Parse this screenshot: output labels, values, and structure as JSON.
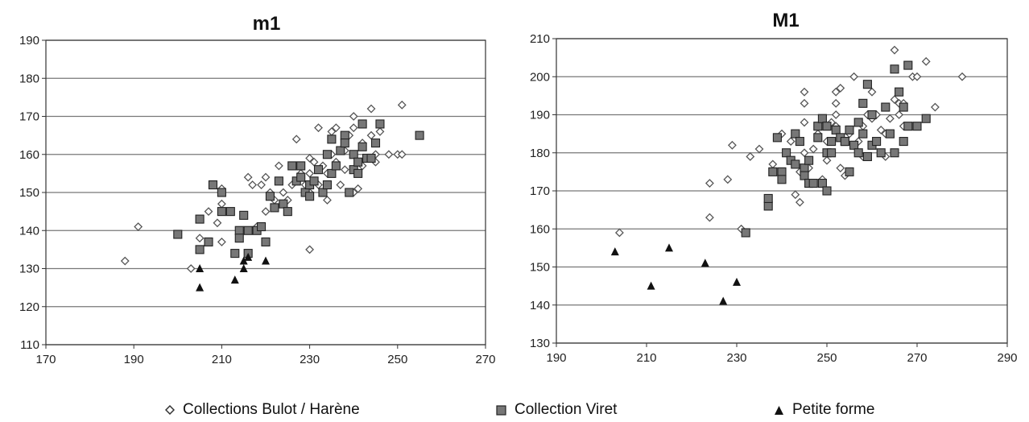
{
  "colors": {
    "grid": "#777777",
    "axis": "#333333",
    "diamond_stroke": "#555555",
    "square_fill": "#777777",
    "triangle_fill": "#111111"
  },
  "legend": {
    "bulot": "Collections Bulot / Harène",
    "viret": "Collection Viret",
    "petite": "Petite forme"
  },
  "chart_data": [
    {
      "type": "scatter",
      "title": "m1",
      "xlabel": "",
      "ylabel": "",
      "xlim": [
        170,
        270
      ],
      "ylim": [
        110,
        190
      ],
      "xticks": [
        170,
        190,
        210,
        230,
        250,
        270
      ],
      "yticks": [
        110,
        120,
        130,
        140,
        150,
        160,
        170,
        180,
        190
      ],
      "grid": true,
      "series": [
        {
          "name": "Collections Bulot / Harène",
          "marker": "diamond",
          "points": [
            [
              188,
              132
            ],
            [
              191,
              141
            ],
            [
              203,
              130
            ],
            [
              205,
              138
            ],
            [
              207,
              145
            ],
            [
              209,
              142
            ],
            [
              210,
              137
            ],
            [
              210,
              147
            ],
            [
              210,
              151
            ],
            [
              212,
              145
            ],
            [
              214,
              138
            ],
            [
              216,
              154
            ],
            [
              217,
              152
            ],
            [
              218,
              141
            ],
            [
              219,
              152
            ],
            [
              220,
              154
            ],
            [
              220,
              145
            ],
            [
              221,
              150
            ],
            [
              222,
              148
            ],
            [
              223,
              157
            ],
            [
              224,
              150
            ],
            [
              225,
              148
            ],
            [
              226,
              152
            ],
            [
              226,
              157
            ],
            [
              227,
              164
            ],
            [
              228,
              155
            ],
            [
              229,
              152
            ],
            [
              230,
              150
            ],
            [
              230,
              155
            ],
            [
              230,
              159
            ],
            [
              230,
              135
            ],
            [
              231,
              158
            ],
            [
              232,
              167
            ],
            [
              232,
              152
            ],
            [
              233,
              157
            ],
            [
              234,
              148
            ],
            [
              234,
              155
            ],
            [
              235,
              160
            ],
            [
              235,
              166
            ],
            [
              236,
              167
            ],
            [
              236,
              158
            ],
            [
              237,
              152
            ],
            [
              238,
              156
            ],
            [
              238,
              161
            ],
            [
              239,
              165
            ],
            [
              240,
              170
            ],
            [
              240,
              150
            ],
            [
              240,
              167
            ],
            [
              241,
              151
            ],
            [
              242,
              157
            ],
            [
              242,
              163
            ],
            [
              244,
              172
            ],
            [
              244,
              165
            ],
            [
              245,
              160
            ],
            [
              245,
              158
            ],
            [
              246,
              166
            ],
            [
              248,
              160
            ],
            [
              250,
              160
            ],
            [
              251,
              173
            ],
            [
              251,
              160
            ]
          ]
        },
        {
          "name": "Collection Viret",
          "marker": "square",
          "points": [
            [
              200,
              139
            ],
            [
              205,
              143
            ],
            [
              205,
              135
            ],
            [
              207,
              137
            ],
            [
              208,
              152
            ],
            [
              210,
              150
            ],
            [
              210,
              145
            ],
            [
              212,
              145
            ],
            [
              213,
              134
            ],
            [
              214,
              140
            ],
            [
              214,
              138
            ],
            [
              215,
              144
            ],
            [
              216,
              134
            ],
            [
              216,
              140
            ],
            [
              218,
              140
            ],
            [
              219,
              141
            ],
            [
              220,
              137
            ],
            [
              221,
              149
            ],
            [
              222,
              146
            ],
            [
              223,
              153
            ],
            [
              224,
              147
            ],
            [
              225,
              145
            ],
            [
              226,
              157
            ],
            [
              227,
              153
            ],
            [
              228,
              154
            ],
            [
              228,
              157
            ],
            [
              229,
              150
            ],
            [
              230,
              149
            ],
            [
              230,
              152
            ],
            [
              231,
              153
            ],
            [
              232,
              156
            ],
            [
              233,
              150
            ],
            [
              234,
              152
            ],
            [
              234,
              160
            ],
            [
              235,
              155
            ],
            [
              235,
              164
            ],
            [
              236,
              157
            ],
            [
              237,
              161
            ],
            [
              238,
              165
            ],
            [
              238,
              163
            ],
            [
              239,
              150
            ],
            [
              240,
              160
            ],
            [
              240,
              156
            ],
            [
              241,
              155
            ],
            [
              241,
              158
            ],
            [
              242,
              168
            ],
            [
              242,
              162
            ],
            [
              243,
              159
            ],
            [
              244,
              159
            ],
            [
              245,
              163
            ],
            [
              246,
              168
            ],
            [
              255,
              165
            ]
          ]
        },
        {
          "name": "Petite forme",
          "marker": "triangle",
          "points": [
            [
              205,
              130
            ],
            [
              205,
              125
            ],
            [
              213,
              127
            ],
            [
              215,
              130
            ],
            [
              216,
              133
            ],
            [
              220,
              132
            ],
            [
              215,
              132
            ]
          ]
        }
      ]
    },
    {
      "type": "scatter",
      "title": "M1",
      "xlabel": "",
      "ylabel": "",
      "xlim": [
        190,
        290
      ],
      "ylim": [
        130,
        210
      ],
      "xticks": [
        190,
        210,
        230,
        250,
        270,
        290
      ],
      "yticks": [
        130,
        140,
        150,
        160,
        170,
        180,
        190,
        200,
        210
      ],
      "grid": true,
      "series": [
        {
          "name": "Collections Bulot / Harène",
          "marker": "diamond",
          "points": [
            [
              204,
              159
            ],
            [
              224,
              172
            ],
            [
              224,
              163
            ],
            [
              228,
              173
            ],
            [
              229,
              182
            ],
            [
              231,
              160
            ],
            [
              233,
              179
            ],
            [
              235,
              181
            ],
            [
              238,
              177
            ],
            [
              240,
              185
            ],
            [
              242,
              183
            ],
            [
              243,
              169
            ],
            [
              244,
              167
            ],
            [
              244,
              175
            ],
            [
              245,
              180
            ],
            [
              245,
              188
            ],
            [
              245,
              193
            ],
            [
              245,
              196
            ],
            [
              246,
              176
            ],
            [
              247,
              172
            ],
            [
              248,
              185
            ],
            [
              249,
              173
            ],
            [
              250,
              183
            ],
            [
              250,
              178
            ],
            [
              251,
              188
            ],
            [
              252,
              187
            ],
            [
              252,
              190
            ],
            [
              252,
              193
            ],
            [
              252,
              196
            ],
            [
              253,
              197
            ],
            [
              253,
              176
            ],
            [
              254,
              174
            ],
            [
              255,
              185
            ],
            [
              256,
              182
            ],
            [
              256,
              200
            ],
            [
              257,
              183
            ],
            [
              258,
              179
            ],
            [
              258,
              187
            ],
            [
              258,
              193
            ],
            [
              259,
              190
            ],
            [
              260,
              189
            ],
            [
              260,
              196
            ],
            [
              261,
              190
            ],
            [
              261,
              183
            ],
            [
              262,
              186
            ],
            [
              263,
              179
            ],
            [
              264,
              189
            ],
            [
              265,
              194
            ],
            [
              265,
              207
            ],
            [
              266,
              193
            ],
            [
              266,
              190
            ],
            [
              267,
              193
            ],
            [
              267,
              187
            ],
            [
              269,
              200
            ],
            [
              270,
              200
            ],
            [
              272,
              204
            ],
            [
              274,
              192
            ],
            [
              280,
              200
            ],
            [
              263,
              185
            ],
            [
              247,
              181
            ]
          ]
        },
        {
          "name": "Collection Viret",
          "marker": "square",
          "points": [
            [
              232,
              159
            ],
            [
              237,
              166
            ],
            [
              237,
              168
            ],
            [
              238,
              175
            ],
            [
              239,
              184
            ],
            [
              240,
              175
            ],
            [
              240,
              173
            ],
            [
              241,
              180
            ],
            [
              242,
              178
            ],
            [
              243,
              177
            ],
            [
              243,
              185
            ],
            [
              244,
              183
            ],
            [
              245,
              176
            ],
            [
              245,
              174
            ],
            [
              246,
              178
            ],
            [
              246,
              172
            ],
            [
              247,
              172
            ],
            [
              248,
              187
            ],
            [
              248,
              184
            ],
            [
              249,
              189
            ],
            [
              249,
              172
            ],
            [
              250,
              180
            ],
            [
              250,
              170
            ],
            [
              250,
              187
            ],
            [
              251,
              183
            ],
            [
              251,
              180
            ],
            [
              252,
              186
            ],
            [
              253,
              184
            ],
            [
              254,
              183
            ],
            [
              254,
              183
            ],
            [
              255,
              175
            ],
            [
              255,
              186
            ],
            [
              256,
              182
            ],
            [
              257,
              180
            ],
            [
              257,
              188
            ],
            [
              258,
              193
            ],
            [
              258,
              185
            ],
            [
              259,
              198
            ],
            [
              259,
              179
            ],
            [
              260,
              182
            ],
            [
              260,
              190
            ],
            [
              261,
              183
            ],
            [
              262,
              180
            ],
            [
              263,
              192
            ],
            [
              264,
              185
            ],
            [
              265,
              202
            ],
            [
              265,
              180
            ],
            [
              266,
              196
            ],
            [
              267,
              183
            ],
            [
              267,
              192
            ],
            [
              268,
              187
            ],
            [
              268,
              203
            ],
            [
              270,
              187
            ],
            [
              272,
              189
            ]
          ]
        },
        {
          "name": "Petite forme",
          "marker": "triangle",
          "points": [
            [
              203,
              154
            ],
            [
              211,
              145
            ],
            [
              215,
              155
            ],
            [
              223,
              151
            ],
            [
              227,
              141
            ],
            [
              230,
              146
            ]
          ]
        }
      ]
    }
  ]
}
